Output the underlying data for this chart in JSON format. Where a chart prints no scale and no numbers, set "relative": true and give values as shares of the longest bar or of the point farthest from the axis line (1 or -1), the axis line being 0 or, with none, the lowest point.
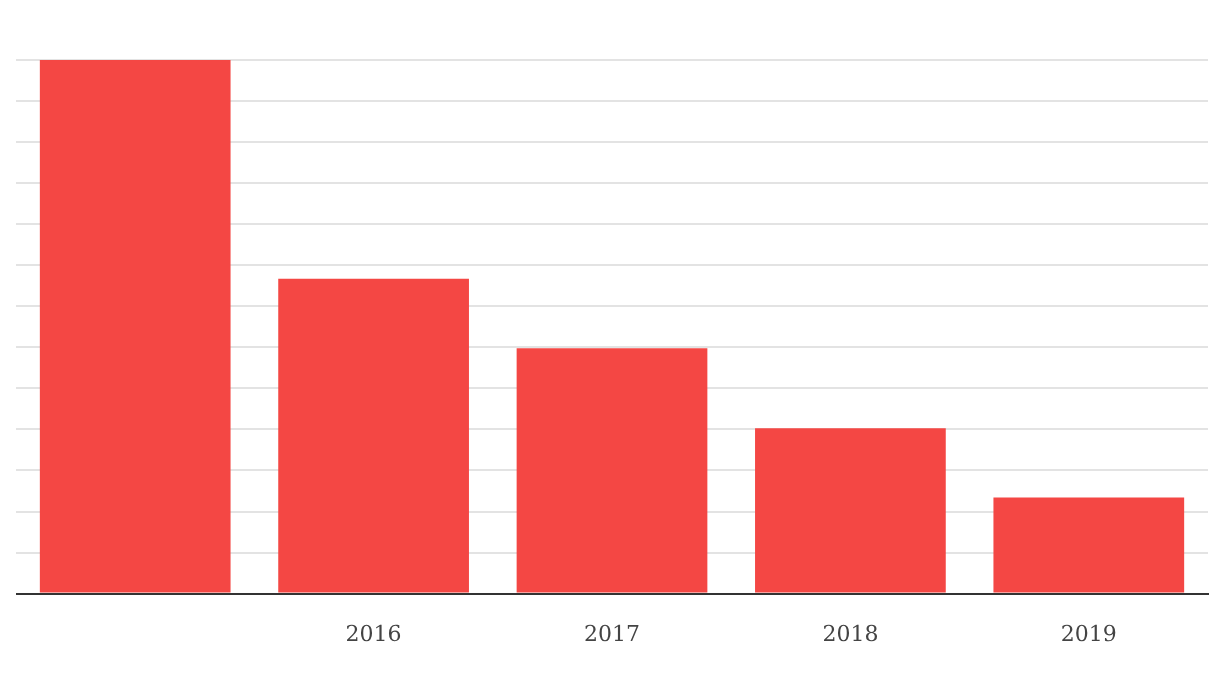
{
  "chart_data": {
    "type": "bar",
    "relative": true,
    "categories": [
      null,
      "2016",
      "2017",
      "2018",
      "2019"
    ],
    "values": [
      1,
      0.59,
      0.46,
      0.31,
      0.18
    ],
    "color": "#f44744",
    "grid": "y"
  }
}
